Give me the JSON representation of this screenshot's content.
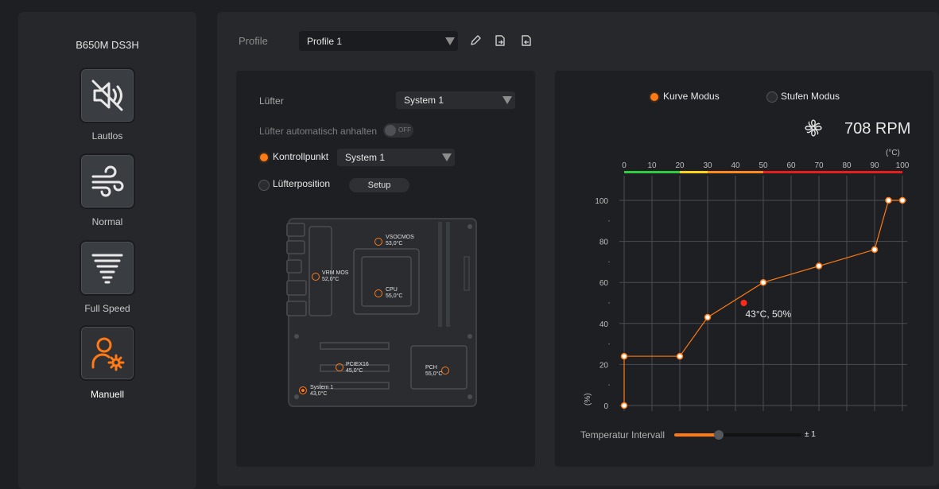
{
  "sidebar": {
    "board_name": "B650M DS3H",
    "modes": [
      {
        "label": "Lautlos",
        "icon": "mute-speaker-icon"
      },
      {
        "label": "Normal",
        "icon": "wind-icon"
      },
      {
        "label": "Full Speed",
        "icon": "tornado-icon"
      },
      {
        "label": "Manuell",
        "icon": "user-settings-icon",
        "active": true
      }
    ]
  },
  "header": {
    "profile_label": "Profile",
    "profile_value": "Profile 1"
  },
  "left_panel": {
    "fan_label": "Lüfter",
    "fan_value": "System 1",
    "auto_stop_label": "Lüfter automatisch anhalten",
    "auto_stop_state": "OFF",
    "control_point_label": "Kontrollpunkt",
    "control_point_value": "System 1",
    "fan_position_label": "Lüfterposition",
    "setup_label": "Setup",
    "board_sensors": {
      "vsocmos_name": "VSOCMOS",
      "vsocmos_temp": "53,0°C",
      "vrm_name": "VRM MOS",
      "vrm_temp": "52,0°C",
      "cpu_name": "CPU",
      "cpu_temp": "55,0°C",
      "pciex16_name": "PCIEX16",
      "pciex16_temp": "45,0°C",
      "pch_name": "PCH",
      "pch_temp": "55,0°C",
      "system1_name": "System 1",
      "system1_temp": "43,0°C"
    }
  },
  "right_panel": {
    "curve_mode_label": "Kurve Modus",
    "step_mode_label": "Stufen Modus",
    "rpm": "708 RPM",
    "temp_unit": "(°C)",
    "pct_unit": "(%)",
    "current_point_label": "43°C, 50%",
    "interval_label": "Temperatur Intervall",
    "interval_value": "± 1",
    "interval_level": 0.35
  },
  "chart_data": {
    "type": "line",
    "x_ticks": [
      0,
      10,
      20,
      30,
      40,
      50,
      60,
      70,
      80,
      90,
      100
    ],
    "y_ticks": [
      0,
      20,
      40,
      60,
      80,
      100
    ],
    "xlim": [
      0,
      100
    ],
    "ylim": [
      0,
      100
    ],
    "series": [
      {
        "values": [
          [
            0,
            0
          ],
          [
            0,
            24
          ],
          [
            20,
            24
          ],
          [
            30,
            43
          ],
          [
            50,
            60
          ],
          [
            70,
            68
          ],
          [
            90,
            76
          ],
          [
            95,
            100
          ],
          [
            100,
            100
          ]
        ]
      }
    ],
    "current_point": [
      43,
      50
    ],
    "color_scale": [
      {
        "from": 0,
        "to": 20,
        "color": "#2ecc40"
      },
      {
        "from": 20,
        "to": 30,
        "color": "#ffd21a"
      },
      {
        "from": 30,
        "to": 50,
        "color": "#ff8a1a"
      },
      {
        "from": 50,
        "to": 100,
        "color": "#e81d1d"
      }
    ],
    "line_color": "#ff7a14",
    "grid": true
  }
}
